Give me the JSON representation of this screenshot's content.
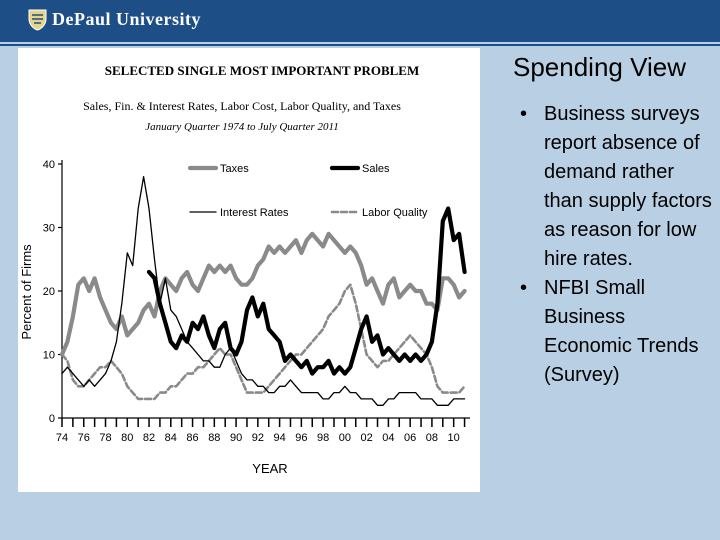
{
  "header": {
    "brand": "DePaul University",
    "logo_icon": "shield-icon",
    "bar_color": "#1d4f86"
  },
  "slide": {
    "title": "Spending View",
    "bullets": [
      "Business surveys report absence of demand rather than supply factors as reason for low hire rates.",
      "NFBI Small Business Economic Trends (Survey)"
    ]
  },
  "chart_data": {
    "type": "line",
    "title": "SELECTED SINGLE MOST IMPORTANT PROBLEM",
    "subtitle": "Sales, Fin. & Interest Rates, Labor Cost, Labor Quality, and Taxes",
    "subtitle2": "January Quarter 1974 to July Quarter 2011",
    "xlabel": "YEAR",
    "ylabel": "Percent of Firms",
    "xlim": [
      1974,
      2011.5
    ],
    "ylim": [
      0,
      40
    ],
    "yticks": [
      0,
      10,
      20,
      30,
      40
    ],
    "xtick_labels": [
      "74",
      "76",
      "78",
      "80",
      "82",
      "84",
      "86",
      "88",
      "90",
      "92",
      "94",
      "96",
      "98",
      "00",
      "02",
      "04",
      "06",
      "08",
      "10"
    ],
    "legend": [
      "Taxes",
      "Sales",
      "Interest Rates",
      "Labor Quality"
    ],
    "series": [
      {
        "name": "Taxes",
        "color": "#8a8a8a",
        "style": "thick",
        "x": [
          1974,
          1974.5,
          1975,
          1975.5,
          1976,
          1976.5,
          1977,
          1977.5,
          1978,
          1978.5,
          1979,
          1979.5,
          1980,
          1980.5,
          1981,
          1981.5,
          1982,
          1982.5,
          1983,
          1983.5,
          1984,
          1984.5,
          1985,
          1985.5,
          1986,
          1986.5,
          1987,
          1987.5,
          1988,
          1988.5,
          1989,
          1989.5,
          1990,
          1990.5,
          1991,
          1991.5,
          1992,
          1992.5,
          1993,
          1993.5,
          1994,
          1994.5,
          1995,
          1995.5,
          1996,
          1996.5,
          1997,
          1997.5,
          1998,
          1998.5,
          1999,
          1999.5,
          2000,
          2000.5,
          2001,
          2001.5,
          2002,
          2002.5,
          2003,
          2003.5,
          2004,
          2004.5,
          2005,
          2005.5,
          2006,
          2006.5,
          2007,
          2007.5,
          2008,
          2008.5,
          2009,
          2009.5,
          2010,
          2010.5,
          2011
        ],
        "y": [
          10,
          12,
          16,
          21,
          22,
          20,
          22,
          19,
          17,
          15,
          14,
          16,
          13,
          14,
          15,
          17,
          18,
          16,
          20,
          22,
          21,
          20,
          22,
          23,
          21,
          20,
          22,
          24,
          23,
          24,
          23,
          24,
          22,
          21,
          21,
          22,
          24,
          25,
          27,
          26,
          27,
          26,
          27,
          28,
          26,
          28,
          29,
          28,
          27,
          29,
          28,
          27,
          26,
          27,
          26,
          24,
          21,
          22,
          20,
          18,
          21,
          22,
          19,
          20,
          21,
          20,
          20,
          18,
          18,
          17,
          22,
          22,
          21,
          19,
          20
        ]
      },
      {
        "name": "Sales",
        "color": "#000000",
        "style": "thick",
        "x": [
          1982,
          1982.5,
          1983,
          1983.5,
          1984,
          1984.5,
          1985,
          1985.5,
          1986,
          1986.5,
          1987,
          1987.5,
          1988,
          1988.5,
          1989,
          1989.5,
          1990,
          1990.5,
          1991,
          1991.5,
          1992,
          1992.5,
          1993,
          1993.5,
          1994,
          1994.5,
          1995,
          1995.5,
          1996,
          1996.5,
          1997,
          1997.5,
          1998,
          1998.5,
          1999,
          1999.5,
          2000,
          2000.5,
          2001,
          2001.5,
          2002,
          2002.5,
          2003,
          2003.5,
          2004,
          2004.5,
          2005,
          2005.5,
          2006,
          2006.5,
          2007,
          2007.5,
          2008,
          2008.5,
          2009,
          2009.5,
          2010,
          2010.5,
          2011
        ],
        "y": [
          23,
          22,
          18,
          15,
          12,
          11,
          13,
          12,
          15,
          14,
          16,
          13,
          11,
          14,
          15,
          11,
          10,
          12,
          17,
          19,
          16,
          18,
          14,
          13,
          12,
          9,
          10,
          9,
          8,
          9,
          7,
          8,
          8,
          9,
          7,
          8,
          7,
          8,
          11,
          14,
          16,
          12,
          13,
          10,
          11,
          10,
          9,
          10,
          9,
          10,
          9,
          10,
          12,
          18,
          31,
          33,
          28,
          29,
          23
        ]
      },
      {
        "name": "Interest Rates",
        "color": "#000000",
        "style": "thin",
        "x": [
          1974,
          1974.5,
          1975,
          1975.5,
          1976,
          1976.5,
          1977,
          1977.5,
          1978,
          1978.5,
          1979,
          1979.5,
          1980,
          1980.5,
          1981,
          1981.5,
          1982,
          1982.5,
          1983,
          1983.5,
          1984,
          1984.5,
          1985,
          1985.5,
          1986,
          1986.5,
          1987,
          1987.5,
          1988,
          1988.5,
          1989,
          1989.5,
          1990,
          1990.5,
          1991,
          1991.5,
          1992,
          1992.5,
          1993,
          1993.5,
          1994,
          1994.5,
          1995,
          1995.5,
          1996,
          1996.5,
          1997,
          1997.5,
          1998,
          1998.5,
          1999,
          1999.5,
          2000,
          2000.5,
          2001,
          2001.5,
          2002,
          2002.5,
          2003,
          2003.5,
          2004,
          2004.5,
          2005,
          2005.5,
          2006,
          2006.5,
          2007,
          2007.5,
          2008,
          2008.5,
          2009,
          2009.5,
          2010,
          2010.5,
          2011
        ],
        "y": [
          7,
          8,
          7,
          6,
          5,
          6,
          5,
          6,
          7,
          9,
          12,
          18,
          26,
          24,
          33,
          38,
          33,
          25,
          18,
          22,
          17,
          16,
          14,
          12,
          11,
          10,
          9,
          9,
          8,
          8,
          10,
          11,
          9,
          7,
          6,
          6,
          5,
          5,
          4,
          4,
          5,
          5,
          6,
          5,
          4,
          4,
          4,
          4,
          3,
          3,
          4,
          4,
          5,
          4,
          4,
          3,
          3,
          3,
          2,
          2,
          3,
          3,
          4,
          4,
          4,
          4,
          3,
          3,
          3,
          2,
          2,
          2,
          3,
          3,
          3
        ]
      },
      {
        "name": "Labor Quality",
        "color": "#8a8a8a",
        "style": "dashed",
        "x": [
          1974,
          1974.5,
          1975,
          1975.5,
          1976,
          1976.5,
          1977,
          1977.5,
          1978,
          1978.5,
          1979,
          1979.5,
          1980,
          1980.5,
          1981,
          1981.5,
          1982,
          1982.5,
          1983,
          1983.5,
          1984,
          1984.5,
          1985,
          1985.5,
          1986,
          1986.5,
          1987,
          1987.5,
          1988,
          1988.5,
          1989,
          1989.5,
          1990,
          1990.5,
          1991,
          1991.5,
          1992,
          1992.5,
          1993,
          1993.5,
          1994,
          1994.5,
          1995,
          1995.5,
          1996,
          1996.5,
          1997,
          1997.5,
          1998,
          1998.5,
          1999,
          1999.5,
          2000,
          2000.5,
          2001,
          2001.5,
          2002,
          2002.5,
          2003,
          2003.5,
          2004,
          2004.5,
          2005,
          2005.5,
          2006,
          2006.5,
          2007,
          2007.5,
          2008,
          2008.5,
          2009,
          2009.5,
          2010,
          2010.5,
          2011
        ],
        "y": [
          10,
          9,
          6,
          5,
          5,
          6,
          7,
          8,
          8,
          9,
          8,
          7,
          5,
          4,
          3,
          3,
          3,
          3,
          4,
          4,
          5,
          5,
          6,
          7,
          7,
          8,
          8,
          9,
          10,
          11,
          10,
          10,
          8,
          6,
          4,
          4,
          4,
          4,
          5,
          6,
          7,
          8,
          9,
          10,
          10,
          11,
          12,
          13,
          14,
          16,
          17,
          18,
          20,
          21,
          18,
          14,
          10,
          9,
          8,
          9,
          9,
          10,
          11,
          12,
          13,
          12,
          11,
          10,
          8,
          5,
          4,
          4,
          4,
          4,
          5
        ]
      }
    ]
  }
}
